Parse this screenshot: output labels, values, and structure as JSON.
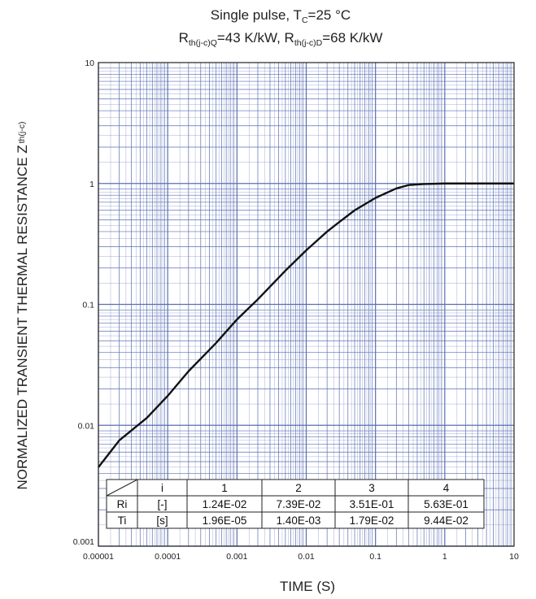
{
  "chart_data": {
    "type": "line",
    "title_line1": {
      "prefix": "Single pulse, T",
      "sub": "C",
      "suffix": "=25 °C"
    },
    "title_line2": {
      "p1": "R",
      "s1": "th(j-c)Q",
      "t1": "=43 K/kW, R",
      "s2": "th(j-c)D",
      "t2": "=68 K/kW"
    },
    "xlabel": "TIME  (S)",
    "ylabel": {
      "main": "NORMALIZED TRANSIENT THERMAL RESISTANCE Z",
      "sub": "th(j-c)"
    },
    "x_scale": "log",
    "y_scale": "log",
    "xlim": [
      1e-05,
      10
    ],
    "ylim": [
      0.001,
      10
    ],
    "x_tick_labels": [
      "0.00001",
      "0.0001",
      "0.001",
      "0.01",
      "0.1",
      "1",
      "10"
    ],
    "y_tick_labels": [
      "0.001",
      "0.01",
      "0.1",
      "1",
      "10"
    ],
    "grid": true,
    "series": [
      {
        "x": [
          1e-05,
          2e-05,
          5e-05,
          0.0001,
          0.0002,
          0.0005,
          0.001,
          0.002,
          0.005,
          0.01,
          0.02,
          0.03,
          0.05,
          0.1,
          0.2,
          0.3,
          0.5,
          1,
          2,
          5,
          10
        ],
        "y": [
          0.0045,
          0.0075,
          0.0115,
          0.0175,
          0.028,
          0.048,
          0.075,
          0.11,
          0.19,
          0.28,
          0.4,
          0.48,
          0.6,
          0.76,
          0.91,
          0.97,
          0.99,
          1.0,
          1.0,
          1.0,
          1.0
        ]
      }
    ],
    "table": {
      "header": [
        "",
        "i",
        "1",
        "2",
        "3",
        "4"
      ],
      "rows": [
        [
          "Ri",
          "[-]",
          "1.24E-02",
          "7.39E-02",
          "3.51E-01",
          "5.63E-01"
        ],
        [
          "Ti",
          "[s]",
          "1.96E-05",
          "1.40E-03",
          "1.79E-02",
          "9.44E-02"
        ]
      ]
    },
    "colors": {
      "grid": "#5a6fb3",
      "curve": "#111111",
      "frame": "#222222"
    }
  }
}
